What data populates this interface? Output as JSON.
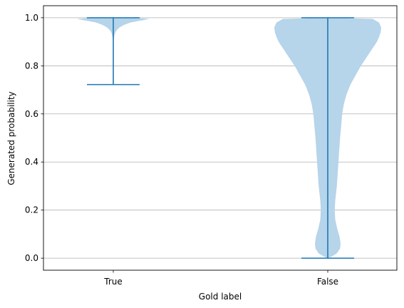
{
  "chart_data": {
    "type": "violin",
    "xlabel": "Gold label",
    "ylabel": "Generated probability",
    "categories": [
      "True",
      "False"
    ],
    "ylim": [
      -0.05,
      1.05
    ],
    "yticks": [
      0.0,
      0.2,
      0.4,
      0.6,
      0.8,
      1.0
    ],
    "ytick_labels": [
      "0.0",
      "0.2",
      "0.4",
      "0.6",
      "0.8",
      "1.0"
    ],
    "grid": "horizontal",
    "colors": {
      "violin_fill": "#b6d4ea",
      "extrema_line": "#1f77b4",
      "grid": "#b0b0b0",
      "axes": "#000000"
    },
    "violins": [
      {
        "category": "True",
        "min": 0.722,
        "max": 1.0,
        "density_profile": [
          [
            1.0,
            0.0
          ],
          [
            0.998,
            0.5
          ],
          [
            0.995,
            0.68
          ],
          [
            0.99,
            0.56
          ],
          [
            0.985,
            0.44
          ],
          [
            0.98,
            0.32
          ],
          [
            0.97,
            0.2
          ],
          [
            0.96,
            0.12
          ],
          [
            0.95,
            0.07
          ],
          [
            0.94,
            0.04
          ],
          [
            0.93,
            0.025
          ],
          [
            0.92,
            0.015
          ],
          [
            0.91,
            0.008
          ],
          [
            0.9,
            0.0
          ]
        ]
      },
      {
        "category": "False",
        "min": 0.0,
        "max": 1.0,
        "density_profile": [
          [
            1.0,
            0.0
          ],
          [
            0.995,
            0.84
          ],
          [
            0.98,
            0.96
          ],
          [
            0.96,
            1.0
          ],
          [
            0.94,
            0.99
          ],
          [
            0.92,
            0.96
          ],
          [
            0.9,
            0.92
          ],
          [
            0.88,
            0.86
          ],
          [
            0.86,
            0.8
          ],
          [
            0.84,
            0.74
          ],
          [
            0.8,
            0.62
          ],
          [
            0.76,
            0.52
          ],
          [
            0.72,
            0.42
          ],
          [
            0.68,
            0.35
          ],
          [
            0.64,
            0.3
          ],
          [
            0.6,
            0.27
          ],
          [
            0.5,
            0.23
          ],
          [
            0.4,
            0.2
          ],
          [
            0.3,
            0.17
          ],
          [
            0.24,
            0.14
          ],
          [
            0.2,
            0.13
          ],
          [
            0.16,
            0.14
          ],
          [
            0.12,
            0.18
          ],
          [
            0.09,
            0.22
          ],
          [
            0.06,
            0.24
          ],
          [
            0.04,
            0.23
          ],
          [
            0.02,
            0.17
          ],
          [
            0.008,
            0.08
          ],
          [
            0.0,
            0.0
          ]
        ]
      }
    ]
  }
}
